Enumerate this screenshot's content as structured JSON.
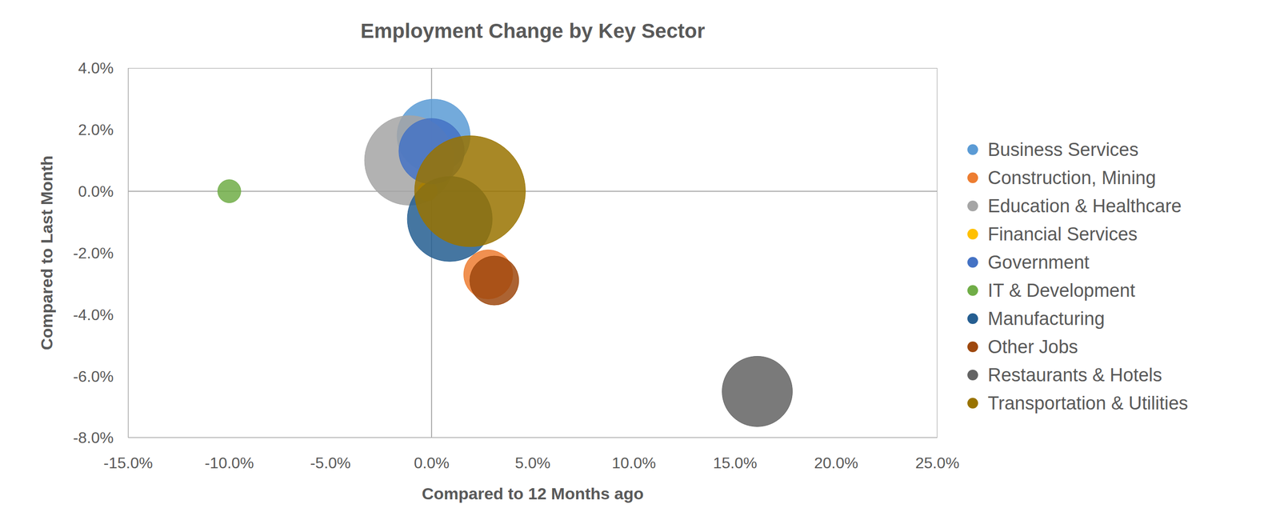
{
  "chart_data": {
    "type": "bubble",
    "title": "Employment Change by Key Sector",
    "x_label": "Compared to 12 Months ago",
    "y_label": "Compared to Last Month",
    "xlim": [
      -15,
      25
    ],
    "ylim": [
      -8,
      4
    ],
    "xticks": [
      {
        "value": -15,
        "label": "-15.0%"
      },
      {
        "value": -10,
        "label": "-10.0%"
      },
      {
        "value": -5,
        "label": "-5.0%"
      },
      {
        "value": 0,
        "label": "0.0%"
      },
      {
        "value": 5,
        "label": "5.0%"
      },
      {
        "value": 10,
        "label": "10.0%"
      },
      {
        "value": 15,
        "label": "15.0%"
      },
      {
        "value": 20,
        "label": "20.0%"
      },
      {
        "value": 25,
        "label": "25.0%"
      }
    ],
    "yticks": [
      {
        "value": -8,
        "label": "-8.0%"
      },
      {
        "value": -6,
        "label": "-6.0%"
      },
      {
        "value": -4,
        "label": "-4.0%"
      },
      {
        "value": -2,
        "label": "-2.0%"
      },
      {
        "value": 0,
        "label": "0.0%"
      },
      {
        "value": 2,
        "label": "2.0%"
      },
      {
        "value": 4,
        "label": "4.0%"
      }
    ],
    "grid": false,
    "legend": "right",
    "series": [
      {
        "name": "Business Services",
        "color": "#5b9bd5",
        "x": [
          0.1
        ],
        "values": [
          1.8
        ],
        "size": [
          20
        ]
      },
      {
        "name": "Construction, Mining",
        "color": "#ed7d31",
        "x": [
          2.8
        ],
        "values": [
          -2.7
        ],
        "size": [
          9
        ]
      },
      {
        "name": "Education & Healthcare",
        "color": "#a5a5a5",
        "x": [
          -1.1
        ],
        "values": [
          1.0
        ],
        "size": [
          30
        ]
      },
      {
        "name": "Financial Services",
        "color": "#ffc000",
        "x": [
          -0.2
        ],
        "values": [
          0.0
        ],
        "size": [
          1.4
        ]
      },
      {
        "name": "Government",
        "color": "#4472c4",
        "x": [
          0.0
        ],
        "values": [
          1.3
        ],
        "size": [
          16
        ]
      },
      {
        "name": "IT & Development",
        "color": "#70ad47",
        "x": [
          -10.0
        ],
        "values": [
          0.0
        ],
        "size": [
          2
        ]
      },
      {
        "name": "Manufacturing",
        "color": "#255e91",
        "x": [
          0.9
        ],
        "values": [
          -0.9
        ],
        "size": [
          27
        ]
      },
      {
        "name": "Other Jobs",
        "color": "#9e480e",
        "x": [
          3.1
        ],
        "values": [
          -2.9
        ],
        "size": [
          9
        ]
      },
      {
        "name": "Restaurants & Hotels",
        "color": "#636363",
        "x": [
          16.1
        ],
        "values": [
          -6.5
        ],
        "size": [
          18.5
        ]
      },
      {
        "name": "Transportation & Utilities",
        "color": "#997300",
        "x": [
          1.9
        ],
        "values": [
          0.0
        ],
        "size": [
          46
        ]
      }
    ]
  }
}
